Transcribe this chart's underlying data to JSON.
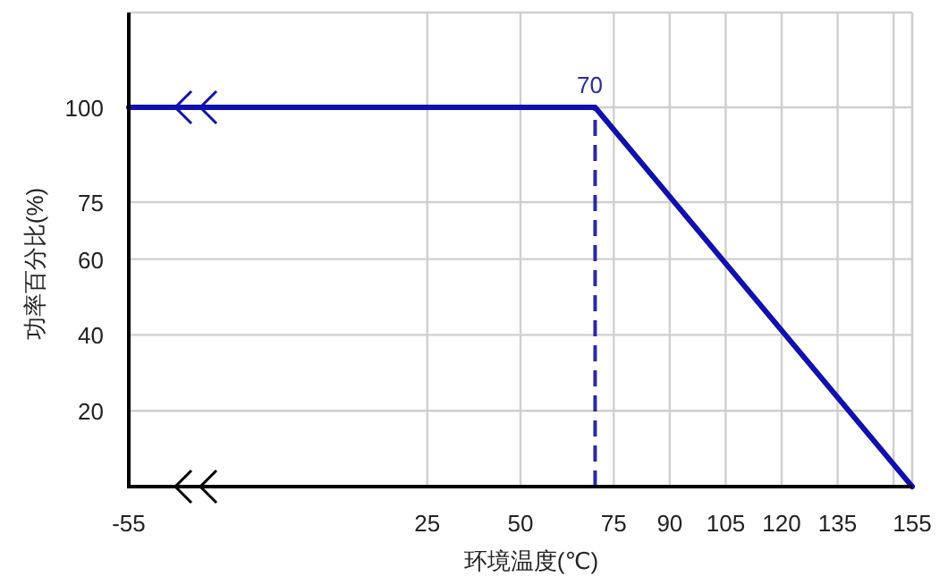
{
  "chart_data": {
    "type": "line",
    "xlabel": "环境温度(℃)",
    "ylabel": "功率百分比(%)",
    "series": [
      {
        "color": "#1010b0",
        "x": [
          -55,
          70,
          155
        ],
        "values": [
          100,
          100,
          0
        ]
      }
    ],
    "xlim": [
      -55,
      155
    ],
    "ylim": [
      0,
      125
    ],
    "xticks": [
      -55,
      25,
      50,
      75,
      90,
      105,
      120,
      135,
      {
        "value": 150,
        "label": null
      },
      155
    ],
    "yticks": [
      20,
      40,
      60,
      75,
      100
    ],
    "ref_lines": [
      {
        "axis": "x",
        "value": 70,
        "label": "70",
        "color": "#2a2aa0",
        "line_style": "dashed"
      }
    ],
    "grid": true,
    "marker": "none",
    "line_style": "solid"
  }
}
